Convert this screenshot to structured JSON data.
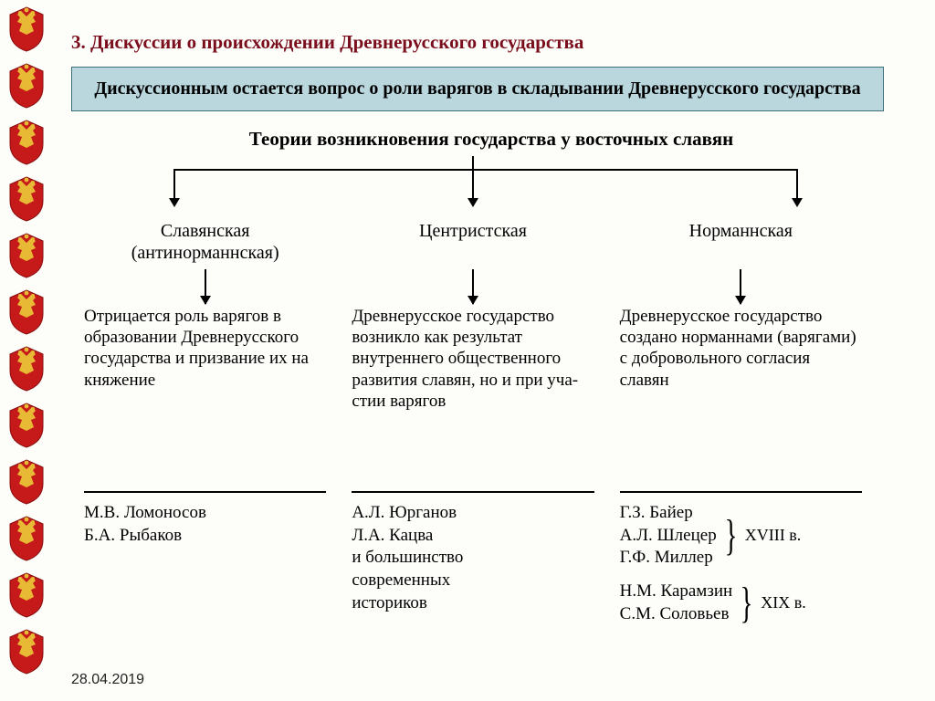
{
  "colors": {
    "title": "#7a0e1c",
    "highlight_bg": "#b9d7dd",
    "highlight_border": "#3b6d7a",
    "emblem_red": "#c61a1a",
    "emblem_gold": "#e8b935",
    "text": "#000000",
    "page_bg": "#fdfdfa"
  },
  "section_number_title": "3. Дискуссии о происхождении Древнерусского государства",
  "highlight_text": "Дискуссионным остается вопрос о роли варягов в складывании Древнерусского государства",
  "diagram_title": "Теории возникновения государства у восточных славян",
  "theories": [
    {
      "name_line1": "Славянская",
      "name_line2": "(антинорманнская)",
      "description": "Отрицается роль варя­гов в образовании Древнерусского госу­дарства и призвание их на княжение",
      "authors_block1": [
        "М.В. Ломоносов",
        "Б.А. Рыбаков"
      ]
    },
    {
      "name_line1": "Центристская",
      "name_line2": "",
      "description": "Древнерусское госу­дарство возникло как результат внутреннего обществен­но­го развития сла­вян, но и при уча­стии варягов",
      "authors_block1": [
        "А.Л. Юрганов",
        "Л.А. Кацва",
        "и большинство",
        "современных",
        "историков"
      ]
    },
    {
      "name_line1": "Норманнская",
      "name_line2": "",
      "description": "Древнерусское госу­дарство создано нор­маннами (варягами) с добровольного согла­сия славян",
      "authors_group_a": {
        "names": [
          "Г.З. Байер",
          "А.Л. Шлецер",
          "Г.Ф. Миллер"
        ],
        "century": "XVIII в."
      },
      "authors_group_b": {
        "names": [
          "Н.М. Карамзин",
          "С.М. Соловьев"
        ],
        "century": "XIX в."
      }
    }
  ],
  "footer_date": "28.04.2019",
  "emblem_count": 12
}
